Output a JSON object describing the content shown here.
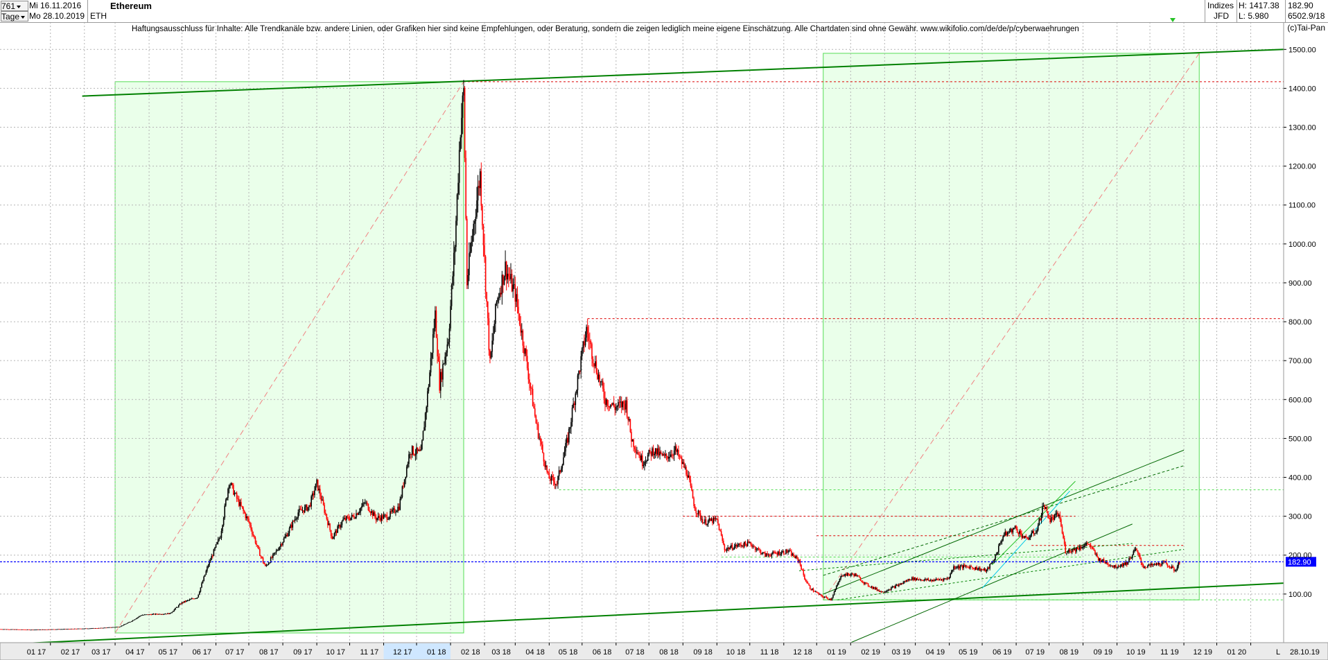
{
  "header": {
    "count": "761",
    "start_date": "Mi 16.11.2016",
    "period": "Tage",
    "end_date": "Mo 28.10.2019",
    "symbol": "ETH",
    "title": "Ethereum",
    "category": "Indizes",
    "source": "JFD",
    "high_label": "H: 1417.38",
    "low_label": "L: 5.980",
    "last_price": "182.90",
    "extra_value": "6502.9/18"
  },
  "disclaimer": "Haftungsausschluss für Inhalte: Alle Trendkanäle bzw. andere Linien, oder Grafiken hier sind keine Empfehlungen, oder Beratung, sondern die zeigen lediglich meine eigene Einschätzung. Alle Chartdaten sind ohne Gewähr.  www.wikifolio.com/de/de/p/cyberwaehrungen",
  "copyright": "(c)Tai-Pan",
  "colors": {
    "up": "#000000",
    "down": "#ff0000",
    "grid": "#b4b4b4",
    "trend": "#008000",
    "fib_box": "#55dd55",
    "fib_fill": "#eaffea",
    "last_price_line": "#0000ff",
    "resist": "#dd0000"
  },
  "chart_data": {
    "type": "candlestick",
    "title": "Ethereum",
    "symbol": "ETH",
    "y_ticks": [
      100,
      200,
      300,
      400,
      500,
      600,
      700,
      800,
      900,
      1000,
      1100,
      1200,
      1300,
      1400,
      1500
    ],
    "y_tick_labels": [
      "100.00",
      "200.00",
      "300.00",
      "400.00",
      "500.00",
      "600.00",
      "700.00",
      "800.00",
      "900.00",
      "1000.00",
      "1100.00",
      "1200.00",
      "1300.00",
      "1400.00",
      "1500.00"
    ],
    "ylim": [
      -25,
      1570
    ],
    "x_range": [
      "2016-11-16",
      "2020-01-31"
    ],
    "x_tick_labels": [
      {
        "date": "2017-01-01",
        "label": "01 17"
      },
      {
        "date": "2017-02-01",
        "label": "02 17"
      },
      {
        "date": "2017-03-01",
        "label": "03 17"
      },
      {
        "date": "2017-04-01",
        "label": "04 17"
      },
      {
        "date": "2017-05-01",
        "label": "05 17"
      },
      {
        "date": "2017-06-01",
        "label": "06 17"
      },
      {
        "date": "2017-07-01",
        "label": "07 17"
      },
      {
        "date": "2017-08-01",
        "label": "08 17"
      },
      {
        "date": "2017-09-01",
        "label": "09 17"
      },
      {
        "date": "2017-10-01",
        "label": "10 17"
      },
      {
        "date": "2017-11-01",
        "label": "11 17"
      },
      {
        "date": "2017-12-01",
        "label": "12 17"
      },
      {
        "date": "2018-01-01",
        "label": "01 18"
      },
      {
        "date": "2018-02-01",
        "label": "02 18"
      },
      {
        "date": "2018-03-01",
        "label": "03 18"
      },
      {
        "date": "2018-04-01",
        "label": "04 18"
      },
      {
        "date": "2018-05-01",
        "label": "05 18"
      },
      {
        "date": "2018-06-01",
        "label": "06 18"
      },
      {
        "date": "2018-07-01",
        "label": "07 18"
      },
      {
        "date": "2018-08-01",
        "label": "08 18"
      },
      {
        "date": "2018-09-01",
        "label": "09 18"
      },
      {
        "date": "2018-10-01",
        "label": "10 18"
      },
      {
        "date": "2018-11-01",
        "label": "11 18"
      },
      {
        "date": "2018-12-01",
        "label": "12 18"
      },
      {
        "date": "2019-01-01",
        "label": "01 19"
      },
      {
        "date": "2019-02-01",
        "label": "02 19"
      },
      {
        "date": "2019-03-01",
        "label": "03 19"
      },
      {
        "date": "2019-04-01",
        "label": "04 19"
      },
      {
        "date": "2019-05-01",
        "label": "05 19"
      },
      {
        "date": "2019-06-01",
        "label": "06 19"
      },
      {
        "date": "2019-07-01",
        "label": "07 19"
      },
      {
        "date": "2019-08-01",
        "label": "08 19"
      },
      {
        "date": "2019-09-01",
        "label": "09 19"
      },
      {
        "date": "2019-10-01",
        "label": "10 19"
      },
      {
        "date": "2019-11-01",
        "label": "11 19"
      },
      {
        "date": "2019-12-01",
        "label": "12 19"
      },
      {
        "date": "2020-01-01",
        "label": "01 20"
      }
    ],
    "x_end_labels": [
      "L",
      "28.10.19"
    ],
    "last_price": 182.9,
    "last_price_label": "182.90",
    "price_path": [
      [
        "2016-11-16",
        9.8
      ],
      [
        "2016-12-15",
        8.2
      ],
      [
        "2017-01-15",
        10
      ],
      [
        "2017-02-15",
        12.5
      ],
      [
        "2017-03-05",
        16
      ],
      [
        "2017-03-15",
        29
      ],
      [
        "2017-03-25",
        46
      ],
      [
        "2017-04-05",
        48
      ],
      [
        "2017-04-20",
        50
      ],
      [
        "2017-05-01",
        78
      ],
      [
        "2017-05-15",
        92
      ],
      [
        "2017-05-25",
        175
      ],
      [
        "2017-06-05",
        250
      ],
      [
        "2017-06-13",
        390
      ],
      [
        "2017-06-20",
        345
      ],
      [
        "2017-07-01",
        285
      ],
      [
        "2017-07-10",
        210
      ],
      [
        "2017-07-16",
        170
      ],
      [
        "2017-07-25",
        205
      ],
      [
        "2017-08-05",
        255
      ],
      [
        "2017-08-15",
        310
      ],
      [
        "2017-08-25",
        325
      ],
      [
        "2017-09-01",
        385
      ],
      [
        "2017-09-10",
        295
      ],
      [
        "2017-09-15",
        245
      ],
      [
        "2017-09-25",
        290
      ],
      [
        "2017-10-05",
        300
      ],
      [
        "2017-10-15",
        335
      ],
      [
        "2017-10-25",
        295
      ],
      [
        "2017-11-05",
        300
      ],
      [
        "2017-11-15",
        325
      ],
      [
        "2017-11-25",
        470
      ],
      [
        "2017-12-05",
        460
      ],
      [
        "2017-12-12",
        640
      ],
      [
        "2017-12-18",
        820
      ],
      [
        "2017-12-22",
        640
      ],
      [
        "2017-12-30",
        760
      ],
      [
        "2018-01-05",
        1000
      ],
      [
        "2018-01-10",
        1300
      ],
      [
        "2018-01-13",
        1390
      ],
      [
        "2018-01-16",
        900
      ],
      [
        "2018-01-22",
        1050
      ],
      [
        "2018-01-28",
        1180
      ],
      [
        "2018-02-02",
        900
      ],
      [
        "2018-02-06",
        690
      ],
      [
        "2018-02-12",
        850
      ],
      [
        "2018-02-20",
        940
      ],
      [
        "2018-03-01",
        870
      ],
      [
        "2018-03-10",
        720
      ],
      [
        "2018-03-20",
        540
      ],
      [
        "2018-03-31",
        400
      ],
      [
        "2018-04-08",
        385
      ],
      [
        "2018-04-18",
        500
      ],
      [
        "2018-04-25",
        620
      ],
      [
        "2018-05-05",
        780
      ],
      [
        "2018-05-12",
        700
      ],
      [
        "2018-05-22",
        600
      ],
      [
        "2018-05-31",
        580
      ],
      [
        "2018-06-10",
        590
      ],
      [
        "2018-06-15",
        500
      ],
      [
        "2018-06-25",
        440
      ],
      [
        "2018-07-05",
        470
      ],
      [
        "2018-07-15",
        450
      ],
      [
        "2018-07-25",
        470
      ],
      [
        "2018-08-05",
        410
      ],
      [
        "2018-08-12",
        320
      ],
      [
        "2018-08-20",
        285
      ],
      [
        "2018-09-01",
        290
      ],
      [
        "2018-09-08",
        215
      ],
      [
        "2018-09-20",
        225
      ],
      [
        "2018-10-01",
        230
      ],
      [
        "2018-10-15",
        200
      ],
      [
        "2018-11-05",
        210
      ],
      [
        "2018-11-15",
        185
      ],
      [
        "2018-11-20",
        140
      ],
      [
        "2018-11-25",
        115
      ],
      [
        "2018-12-05",
        95
      ],
      [
        "2018-12-14",
        86
      ],
      [
        "2018-12-24",
        150
      ],
      [
        "2019-01-05",
        150
      ],
      [
        "2019-01-15",
        125
      ],
      [
        "2019-01-30",
        105
      ],
      [
        "2019-02-15",
        125
      ],
      [
        "2019-02-25",
        140
      ],
      [
        "2019-03-15",
        135
      ],
      [
        "2019-03-31",
        140
      ],
      [
        "2019-04-05",
        170
      ],
      [
        "2019-04-20",
        170
      ],
      [
        "2019-05-05",
        160
      ],
      [
        "2019-05-12",
        190
      ],
      [
        "2019-05-20",
        250
      ],
      [
        "2019-05-31",
        270
      ],
      [
        "2019-06-10",
        240
      ],
      [
        "2019-06-20",
        265
      ],
      [
        "2019-06-26",
        330
      ],
      [
        "2019-07-02",
        290
      ],
      [
        "2019-07-10",
        305
      ],
      [
        "2019-07-16",
        210
      ],
      [
        "2019-07-25",
        215
      ],
      [
        "2019-08-06",
        230
      ],
      [
        "2019-08-15",
        190
      ],
      [
        "2019-08-30",
        170
      ],
      [
        "2019-09-10",
        180
      ],
      [
        "2019-09-18",
        215
      ],
      [
        "2019-09-25",
        170
      ],
      [
        "2019-10-05",
        175
      ],
      [
        "2019-10-15",
        180
      ],
      [
        "2019-10-24",
        160
      ],
      [
        "2019-10-28",
        182.9
      ]
    ],
    "trend_lines": [
      {
        "from": [
          "2017-01-30",
          1380
        ],
        "to": [
          "2020-01-31",
          1500
        ],
        "color": "#008000",
        "width": 2
      },
      {
        "from": [
          "2016-11-16",
          -30
        ],
        "to": [
          "2020-01-31",
          128
        ],
        "color": "#008000",
        "width": 2
      },
      {
        "from": [
          "2018-12-07",
          100
        ],
        "to": [
          "2019-11-01",
          470
        ],
        "color": "#006600",
        "width": 1
      },
      {
        "from": [
          "2018-12-07",
          148
        ],
        "to": [
          "2019-11-01",
          430
        ],
        "color": "#006600",
        "width": 1,
        "dash": "4,3"
      },
      {
        "from": [
          "2019-01-01",
          -25
        ],
        "to": [
          "2019-09-15",
          280
        ],
        "color": "#006600",
        "width": 1
      },
      {
        "from": [
          "2019-05-01",
          115
        ],
        "to": [
          "2019-07-20",
          365
        ],
        "color": "#00c8e8",
        "width": 1
      },
      {
        "from": [
          "2019-05-10",
          175
        ],
        "to": [
          "2019-07-25",
          390
        ],
        "color": "#29c229",
        "width": 1
      },
      {
        "from": [
          "2018-11-15",
          160
        ],
        "to": [
          "2019-09-15",
          230
        ],
        "color": "#008000",
        "width": 1,
        "dash": "3,3"
      },
      {
        "from": [
          "2018-12-20",
          85
        ],
        "to": [
          "2019-11-01",
          215
        ],
        "color": "#008000",
        "width": 1,
        "dash": "3,3"
      }
    ],
    "fib_boxes": [
      {
        "from": [
          "2017-03-01",
          0
        ],
        "to": [
          "2018-01-13",
          1417
        ]
      },
      {
        "from": [
          "2018-12-07",
          85
        ],
        "to": [
          "2019-11-15",
          1490
        ]
      }
    ],
    "resistance_lines": [
      {
        "from": "2018-01-13",
        "to": "2020-01-31",
        "value": 1417,
        "color": "#dd0000"
      },
      {
        "from": "2018-05-06",
        "to": "2020-01-31",
        "value": 808,
        "color": "#dd0000"
      },
      {
        "from": "2018-08-01",
        "to": "2019-07-25",
        "value": 300,
        "color": "#dd0000"
      },
      {
        "from": "2018-12-01",
        "to": "2019-06-01",
        "value": 250,
        "color": "#dd0000"
      },
      {
        "from": "2019-06-15",
        "to": "2019-11-01",
        "value": 225,
        "color": "#dd0000"
      },
      {
        "from": "2018-04-10",
        "to": "2020-01-31",
        "value": 368,
        "color": "#55dd55"
      },
      {
        "from": "2018-09-05",
        "to": "2019-08-01",
        "value": 195,
        "color": "#55dd55"
      },
      {
        "from": "2018-12-07",
        "to": "2020-01-31",
        "value": 85,
        "color": "#55dd55"
      }
    ]
  }
}
